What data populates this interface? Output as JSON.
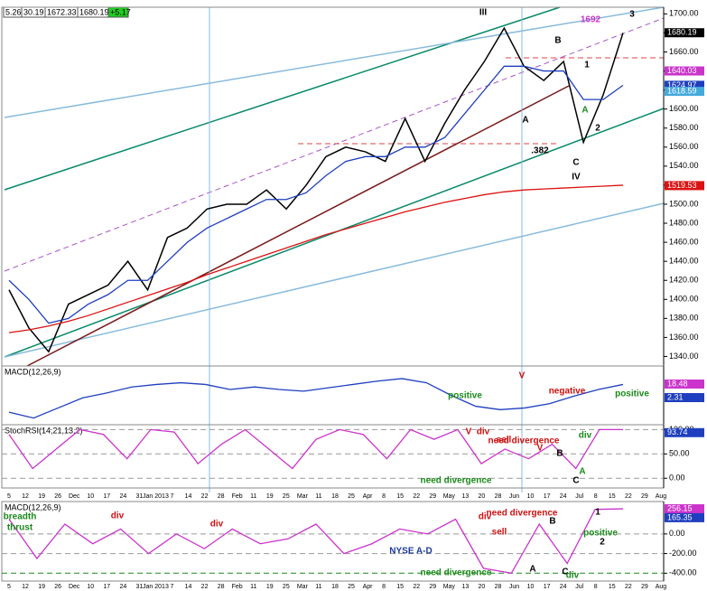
{
  "quote_bar": [
    "5.26",
    "30.19",
    "1672.33",
    "1680.19",
    "+5.17"
  ],
  "time_axis": [
    "5",
    "12",
    "19",
    "26",
    "Dec",
    "10",
    "17",
    "24",
    "31",
    "Jan 2013",
    "7",
    "14",
    "22",
    "28",
    "Feb",
    "11",
    "19",
    "25",
    "Mar",
    "11",
    "18",
    "25",
    "Apr",
    "8",
    "15",
    "22",
    "29",
    "May",
    "13",
    "20",
    "28",
    "Jun",
    "10",
    "17",
    "24",
    "Jul",
    "8",
    "15",
    "22",
    "29",
    "Aug"
  ],
  "chart_data": [
    {
      "type": "line",
      "ylim": [
        1330,
        1707
      ],
      "yticks": [
        {
          "value": 1340,
          "label": "1340.00"
        },
        {
          "value": 1360,
          "label": "1360.00"
        },
        {
          "value": 1380,
          "label": "1380.00"
        },
        {
          "value": 1400,
          "label": "1400.00"
        },
        {
          "value": 1420,
          "label": "1420.00"
        },
        {
          "value": 1440,
          "label": "1440.00"
        },
        {
          "value": 1460,
          "label": "1460.00"
        },
        {
          "value": 1480,
          "label": "1480.00"
        },
        {
          "value": 1500,
          "label": "1500.00"
        },
        {
          "value": 1520,
          "label": "1520.00"
        },
        {
          "value": 1540,
          "label": "1540.00"
        },
        {
          "value": 1560,
          "label": "1560.00"
        },
        {
          "value": 1580,
          "label": "1580.00"
        },
        {
          "value": 1600,
          "label": "1600.00"
        },
        {
          "value": 1620,
          "label": "1620.00"
        },
        {
          "value": 1640,
          "label": "1640.00"
        },
        {
          "value": 1660,
          "label": "1660.00"
        },
        {
          "value": 1680,
          "label": "1680.00"
        },
        {
          "value": 1700,
          "label": "1700.00"
        }
      ],
      "series": [
        {
          "color": "#000000",
          "values": [
            1410,
            1370,
            1345,
            1395,
            1405,
            1415,
            1440,
            1410,
            1465,
            1475,
            1495,
            1500,
            1500,
            1515,
            1495,
            1520,
            1550,
            1560,
            1555,
            1545,
            1590,
            1545,
            1585,
            1620,
            1650,
            1685,
            1645,
            1630,
            1650,
            1565,
            1615,
            1680
          ]
        },
        {
          "color": "#1f3fbf",
          "values": [
            1420,
            1400,
            1375,
            1380,
            1395,
            1405,
            1420,
            1420,
            1440,
            1460,
            1475,
            1485,
            1495,
            1505,
            1505,
            1512,
            1530,
            1545,
            1550,
            1550,
            1560,
            1560,
            1570,
            1595,
            1620,
            1645,
            1645,
            1640,
            1640,
            1610,
            1610,
            1625
          ]
        },
        {
          "color": "#dd1111",
          "values": [
            1365,
            1368,
            1372,
            1377,
            1383,
            1390,
            1397,
            1404,
            1411,
            1418,
            1426,
            1433,
            1440,
            1447,
            1454,
            1461,
            1468,
            1474,
            1480,
            1486,
            1492,
            1497,
            1502,
            1506,
            1510,
            1513,
            1515,
            1516,
            1517,
            1518,
            1519,
            1520
          ]
        }
      ],
      "markers": [
        {
          "value": 1680.19,
          "label": "1680.19",
          "color": "#000000"
        },
        {
          "value": 1640.03,
          "label": "1640.03",
          "color": "#cc33cc"
        },
        {
          "value": 1624.97,
          "label": "1624.97",
          "color": "#1f3fbf"
        },
        {
          "value": 1618.59,
          "label": "1618.59",
          "color": "#44aadd"
        },
        {
          "value": 1519.53,
          "label": "1519.53",
          "color": "#dd1111"
        }
      ],
      "annotations": [
        "III",
        "B",
        "A",
        "1",
        "2",
        "3",
        "A",
        "C",
        "IV",
        ".382",
        "1692"
      ]
    },
    {
      "type": "line",
      "title": "MACD(12,26,9)",
      "ylim": [
        -30,
        40
      ],
      "series": [
        {
          "color": "#1f3fbf",
          "values": [
            -15,
            -22,
            -10,
            2,
            8,
            15,
            18,
            20,
            18,
            12,
            15,
            12,
            10,
            14,
            18,
            22,
            25,
            20,
            5,
            -8,
            -12,
            -10,
            -5,
            4,
            12,
            18
          ]
        }
      ],
      "markers": [
        {
          "value": 18.48,
          "label": "18.48",
          "color": "#cc33cc"
        },
        {
          "value": 2.31,
          "label": "2.31",
          "color": "#1f3fbf"
        }
      ],
      "annotations": [
        "V",
        "positive",
        "negative",
        "positive"
      ]
    },
    {
      "type": "line",
      "title": "StochRSI(14,21,13,2)",
      "ylim": [
        -20,
        110
      ],
      "yticks": [
        {
          "value": 100,
          "label": "100.00"
        },
        {
          "value": 50,
          "label": "50.00"
        },
        {
          "value": 0,
          "label": "0.00"
        }
      ],
      "series": [
        {
          "color": "#cc33cc",
          "values": [
            90,
            20,
            60,
            100,
            90,
            40,
            100,
            95,
            30,
            70,
            100,
            60,
            20,
            80,
            100,
            90,
            40,
            100,
            80,
            100,
            30,
            60,
            40,
            70,
            20,
            100,
            100
          ]
        }
      ],
      "markers": [
        {
          "value": 93.74,
          "label": "93.74",
          "color": "#1f3fbf"
        }
      ],
      "annotations": [
        "div",
        "V",
        "sell",
        "need divergence",
        "V",
        "B",
        "div",
        "A",
        "C",
        "need divergence"
      ]
    },
    {
      "type": "line",
      "title": "MACD(12,26,9)",
      "ylim": [
        -480,
        330
      ],
      "yticks": [
        {
          "value": 0,
          "label": "0.00"
        },
        {
          "value": -200,
          "label": "-200.00"
        },
        {
          "value": -400,
          "label": "-400.00"
        }
      ],
      "series": [
        {
          "color": "#cc33cc",
          "values": [
            150,
            -250,
            100,
            -100,
            50,
            -200,
            0,
            -150,
            50,
            -100,
            -50,
            100,
            -200,
            -100,
            50,
            0,
            150,
            -350,
            -400,
            100,
            -300,
            250,
            256
          ]
        }
      ],
      "markers": [
        {
          "value": 256.15,
          "label": "256.15",
          "color": "#cc33cc"
        },
        {
          "value": 165.35,
          "label": "165.35",
          "color": "#1f3fbf"
        }
      ],
      "annotations": [
        "breadth",
        "thrust",
        "div",
        "div",
        "NYSE A-D",
        "div",
        "sell",
        "need divergence",
        "B",
        "1",
        "2",
        "positive",
        "A",
        "C",
        "div",
        "need divergence"
      ]
    }
  ]
}
